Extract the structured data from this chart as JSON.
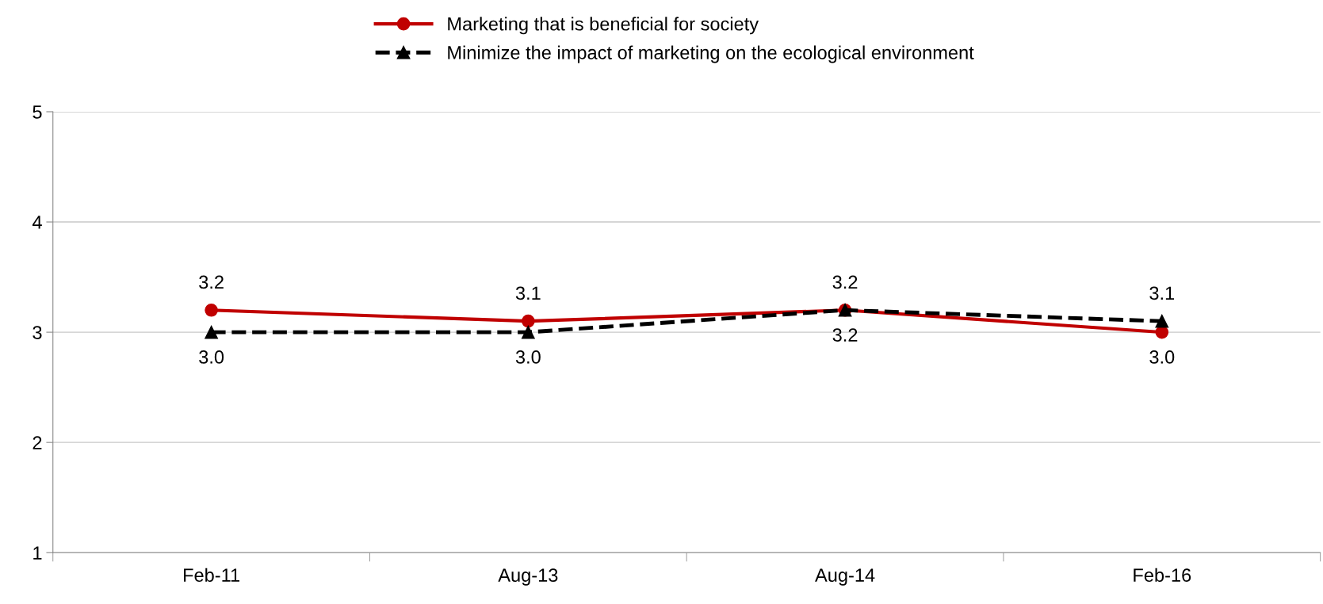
{
  "chart_data": {
    "type": "line",
    "categories": [
      "Feb-11",
      "Aug-13",
      "Aug-14",
      "Feb-16"
    ],
    "series": [
      {
        "name": "Marketing that is beneficial for society",
        "color": "#c00000",
        "values": [
          3.2,
          3.1,
          3.2,
          3.0
        ],
        "value_labels": [
          "3.2",
          "3.1",
          "3.2",
          "3.0"
        ],
        "marker": "circle",
        "line_style": "solid"
      },
      {
        "name": "Minimize the impact of marketing on the ecological environment",
        "color": "#000000",
        "values": [
          3.0,
          3.0,
          3.2,
          3.1
        ],
        "value_labels": [
          "3.0",
          "3.0",
          "3.2",
          "3.1"
        ],
        "marker": "triangle",
        "line_style": "dashed"
      }
    ],
    "ylim": [
      1,
      5
    ],
    "yticks": [
      1,
      2,
      3,
      4,
      5
    ],
    "grid": "y",
    "legend": "top"
  }
}
